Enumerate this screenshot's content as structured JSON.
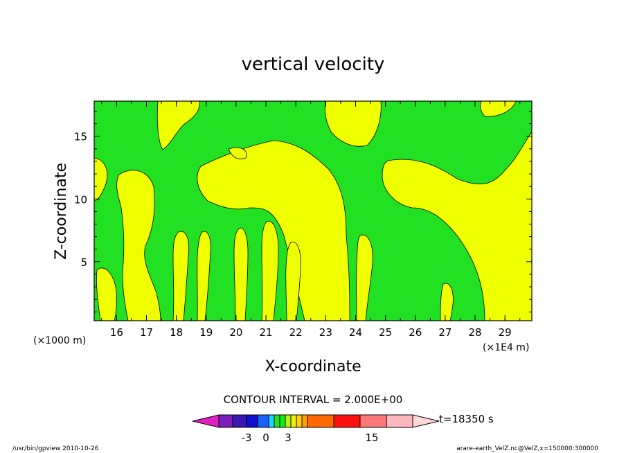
{
  "chart_data": {
    "type": "heatmap",
    "title": "vertical velocity",
    "xlabel": "X-coordinate",
    "ylabel": "Z-coordinate",
    "x_unit_left": "(×1000 m)",
    "x_unit_right": "(×1E4 m)",
    "xlim": [
      152.5,
      299
    ],
    "ylim": [
      0.3,
      17.8
    ],
    "x_ticks": [
      "16",
      "17",
      "18",
      "19",
      "20",
      "21",
      "22",
      "23",
      "24",
      "25",
      "26",
      "27",
      "28",
      "29"
    ],
    "y_ticks": [
      "5",
      "10",
      "15"
    ],
    "contour_interval_label": "CONTOUR INTERVAL = 2.000E+00",
    "time_label": "t=18350 s",
    "colorbar_labels": [
      "-3",
      "0",
      "3",
      "15"
    ],
    "colorbar_colors": [
      "#e020c0",
      "#7a1fb8",
      "#3c18b0",
      "#1010d0",
      "#1a60ff",
      "#12d8ff",
      "#22e022",
      "#10f010",
      "#b8f010",
      "#f0f000",
      "#ffd000",
      "#ffa000",
      "#ff6a00",
      "#ff1010",
      "#ff7878",
      "#ffb8c0",
      "#ffd8d8"
    ],
    "field_colors": {
      "positive": "#f0ff00",
      "negative": "#22e022",
      "contour": "#000000"
    },
    "footer_left": "/usr/bin/gpview   2010-10-26",
    "footer_right": "arare-earth_VelZ.nc@VelZ,x=150000:300000"
  }
}
